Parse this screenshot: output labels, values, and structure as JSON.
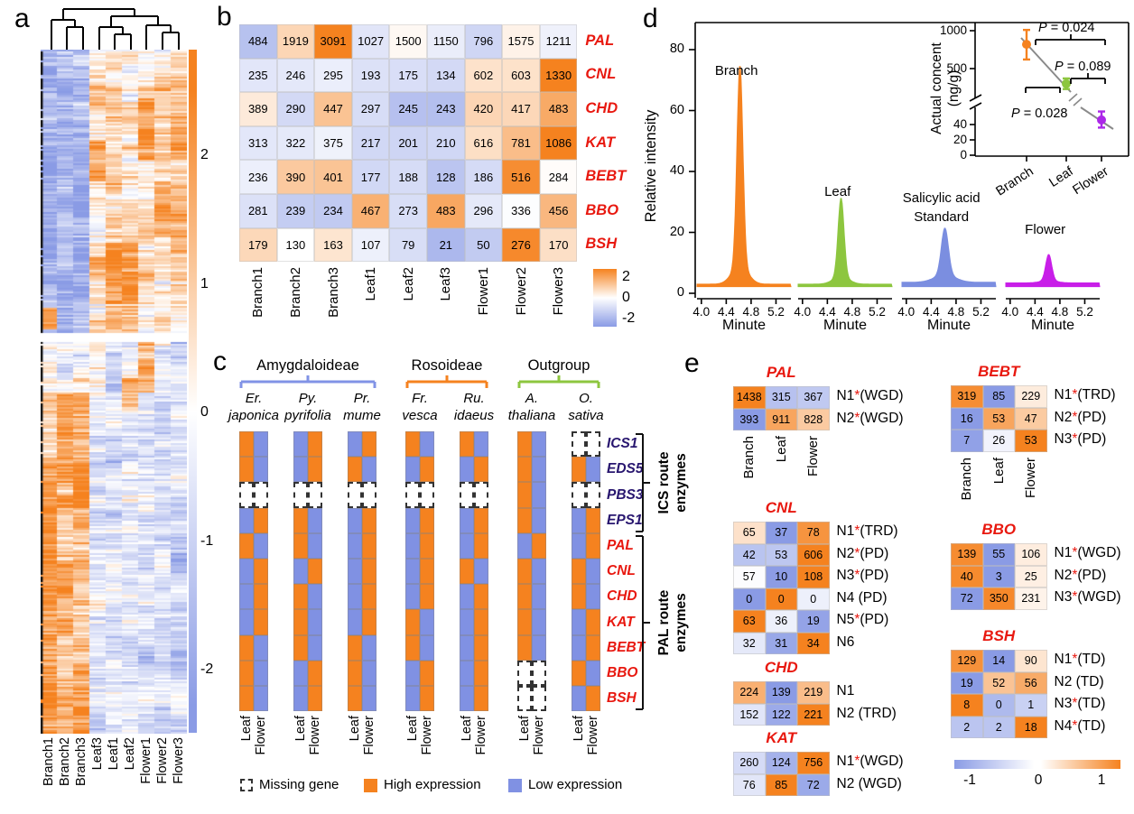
{
  "palette": {
    "orange": "#F5821F",
    "blue": "#8A9BE5",
    "c_blue": "#8091E3",
    "red_label": "#E8180F",
    "navy_label": "#28166F",
    "green": "#8DC63F",
    "std_blue": "#7B8EE0",
    "magenta": "#C81EE8",
    "inset_purple": "#AB27E8",
    "gray_line": "#8a8a8a",
    "black": "#000000"
  },
  "panels": {
    "a": {
      "label": "a"
    },
    "b": {
      "label": "b"
    },
    "c": {
      "label": "c"
    },
    "d": {
      "label": "d"
    },
    "e": {
      "label": "e"
    }
  },
  "chart_data": [
    {
      "id": "a",
      "type": "heatmap",
      "description": "Hierarchically clustered gene expression z-score heatmap (rows = genes)",
      "columns": [
        "Branch1",
        "Branch2",
        "Branch3",
        "Leaf3",
        "Leaf1",
        "Leaf2",
        "Flower1",
        "Flower2",
        "Flower3"
      ],
      "colorbar_ticks": [
        "2",
        "1",
        "0",
        "-1",
        "-2"
      ],
      "zlim": [
        -2,
        2
      ],
      "dendrogram_structure": "((Branch1,(Branch2,Branch3)),((Leaf3,(Leaf1,Leaf2)),(Flower1,(Flower2,Flower3))))",
      "row_blocks": [
        {
          "y0": 0.0,
          "y1": 0.412,
          "base": [
            -1.2,
            -1.15,
            -1.1,
            0.45,
            0.5,
            0.45,
            0.4,
            0.5,
            0.55
          ]
        },
        {
          "y0": 0.412,
          "y1": 0.425,
          "gap": true
        },
        {
          "y0": 0.425,
          "y1": 1.0,
          "base": [
            0.85,
            0.8,
            0.75,
            -0.5,
            -0.5,
            -0.55,
            -0.45,
            -0.5,
            -0.55
          ]
        }
      ],
      "row_bands": [
        {
          "y0": 0.0,
          "y1": 0.05,
          "add": {
            "3": -0.3,
            "4": -0.3,
            "5": -0.3,
            "6": -0.5,
            "7": -0.4,
            "8": -0.3
          }
        },
        {
          "y0": 0.07,
          "y1": 0.16,
          "add": {
            "6": 1.1
          }
        },
        {
          "y0": 0.09,
          "y1": 0.16,
          "add": {
            "8": 0.7
          }
        },
        {
          "y0": 0.13,
          "y1": 0.19,
          "add": {
            "3": 0.9
          }
        },
        {
          "y0": 0.19,
          "y1": 0.27,
          "add": {
            "7": 0.6,
            "8": 0.5
          }
        },
        {
          "y0": 0.28,
          "y1": 0.37,
          "add": {
            "4": 0.7,
            "5": 0.8
          }
        },
        {
          "y0": 0.3,
          "y1": 0.37,
          "add": {
            "3": 0.5
          }
        },
        {
          "y0": 0.375,
          "y1": 0.408,
          "add": {
            "0": 2.6
          }
        },
        {
          "y0": 0.425,
          "y1": 0.5,
          "add": {
            "0": -1.0,
            "1": -0.9,
            "2": -0.7,
            "6": 1.7,
            "7": 0.4
          }
        },
        {
          "y0": 0.48,
          "y1": 0.53,
          "add": {
            "5": 1.2
          }
        },
        {
          "y0": 0.5,
          "y1": 0.56,
          "add": {
            "2": 0.6
          }
        },
        {
          "y0": 0.55,
          "y1": 0.67,
          "add": {
            "1": 0.55,
            "2": 0.35
          }
        },
        {
          "y0": 0.67,
          "y1": 1.0,
          "add": {
            "0": 0.55
          }
        },
        {
          "y0": 0.75,
          "y1": 0.85,
          "add": {
            "1": 0.4
          }
        },
        {
          "y0": 0.96,
          "y1": 1.0,
          "add": {
            "2": 0.9
          }
        }
      ]
    },
    {
      "id": "b",
      "type": "heatmap",
      "rows": [
        "PAL",
        "CNL",
        "CHD",
        "KAT",
        "BEBT",
        "BBO",
        "BSH"
      ],
      "columns": [
        "Branch1",
        "Branch2",
        "Branch3",
        "Leaf1",
        "Leaf2",
        "Leaf3",
        "Flower1",
        "Flower2",
        "Flower3"
      ],
      "values": [
        [
          484,
          1919,
          3091,
          1027,
          1500,
          1150,
          796,
          1575,
          1211
        ],
        [
          235,
          246,
          295,
          193,
          175,
          134,
          602,
          603,
          1330
        ],
        [
          389,
          290,
          447,
          297,
          245,
          243,
          420,
          417,
          483
        ],
        [
          313,
          322,
          375,
          217,
          201,
          210,
          616,
          781,
          1086
        ],
        [
          236,
          390,
          401,
          177,
          188,
          128,
          186,
          516,
          284
        ],
        [
          281,
          239,
          234,
          467,
          273,
          483,
          296,
          336,
          456
        ],
        [
          179,
          130,
          163,
          107,
          79,
          21,
          50,
          276,
          170
        ]
      ],
      "normalize": "row-zscore",
      "zlim": [
        -2,
        2
      ],
      "scale_ticks": [
        "2",
        "0",
        "-2"
      ]
    },
    {
      "id": "c",
      "type": "categorical-heatmap",
      "groups": [
        {
          "name": "Amygdaloideae",
          "color": "#8193E6",
          "pairs": [
            0,
            1,
            2
          ]
        },
        {
          "name": "Rosoideae",
          "color": "#F5821F",
          "pairs": [
            3,
            4
          ]
        },
        {
          "name": "Outgroup",
          "color": "#8DC63F",
          "pairs": [
            5,
            6
          ]
        }
      ],
      "species": [
        {
          "abbr": "Er.",
          "epithet": "japonica"
        },
        {
          "abbr": "Py.",
          "epithet": "pyrifolia"
        },
        {
          "abbr": "Pr.",
          "epithet": "mume"
        },
        {
          "abbr": "Fr.",
          "epithet": "vesca"
        },
        {
          "abbr": "Ru.",
          "epithet": "idaeus"
        },
        {
          "abbr": "A.",
          "epithet": "thaliana"
        },
        {
          "abbr": "O.",
          "epithet": "sativa"
        }
      ],
      "conditions": [
        "Leaf",
        "Flower"
      ],
      "row_groups": [
        {
          "name": "ICS route\nenzymes",
          "genes": [
            "ICS1",
            "EDS5",
            "PBS3",
            "EPS1"
          ],
          "label_style": "navy"
        },
        {
          "name": "PAL route\nenzymes",
          "genes": [
            "PAL",
            "CNL",
            "CHD",
            "KAT",
            "BEBT",
            "BBO",
            "BSH"
          ],
          "label_style": "red"
        }
      ],
      "matrix": [
        {
          "gene": "ICS1",
          "cells": [
            "H",
            "L",
            "L",
            "H",
            "L",
            "H",
            "H",
            "L",
            "H",
            "L",
            "H",
            "L",
            "M",
            "M"
          ]
        },
        {
          "gene": "EDS5",
          "cells": [
            "H",
            "L",
            "L",
            "H",
            "H",
            "L",
            "L",
            "H",
            "L",
            "H",
            "H",
            "L",
            "H",
            "L"
          ]
        },
        {
          "gene": "PBS3",
          "cells": [
            "M",
            "M",
            "M",
            "M",
            "M",
            "M",
            "M",
            "M",
            "M",
            "M",
            "H",
            "L",
            "M",
            "M"
          ]
        },
        {
          "gene": "EPS1",
          "cells": [
            "L",
            "H",
            "H",
            "L",
            "L",
            "H",
            "L",
            "H",
            "L",
            "H",
            "H",
            "L",
            "L",
            "H"
          ]
        },
        {
          "gene": "PAL",
          "cells": [
            "H",
            "L",
            "H",
            "L",
            "L",
            "H",
            "L",
            "H",
            "L",
            "H",
            "L",
            "H",
            "L",
            "H"
          ]
        },
        {
          "gene": "CNL",
          "cells": [
            "L",
            "H",
            "L",
            "H",
            "L",
            "H",
            "L",
            "H",
            "H",
            "L",
            "H",
            "L",
            "H",
            "L"
          ]
        },
        {
          "gene": "CHD",
          "cells": [
            "L",
            "H",
            "H",
            "L",
            "L",
            "H",
            "L",
            "H",
            "L",
            "H",
            "H",
            "L",
            "H",
            "L"
          ]
        },
        {
          "gene": "KAT",
          "cells": [
            "L",
            "H",
            "H",
            "L",
            "L",
            "H",
            "H",
            "L",
            "L",
            "H",
            "H",
            "L",
            "L",
            "H"
          ]
        },
        {
          "gene": "BEBT",
          "cells": [
            "H",
            "L",
            "H",
            "L",
            "H",
            "L",
            "H",
            "L",
            "L",
            "H",
            "H",
            "L",
            "L",
            "H"
          ]
        },
        {
          "gene": "BBO",
          "cells": [
            "H",
            "L",
            "L",
            "H",
            "H",
            "L",
            "L",
            "H",
            "L",
            "H",
            "M",
            "M",
            "H",
            "L"
          ]
        },
        {
          "gene": "BSH",
          "cells": [
            "H",
            "L",
            "L",
            "H",
            "H",
            "L",
            "L",
            "H",
            "L",
            "H",
            "M",
            "M",
            "L",
            "H"
          ]
        }
      ],
      "legend": [
        {
          "key": "M",
          "label": "Missing gene"
        },
        {
          "key": "H",
          "label": "High expression"
        },
        {
          "key": "L",
          "label": "Low expression"
        }
      ]
    },
    {
      "id": "d",
      "type": "chromatogram",
      "y_label": "Relative intensity",
      "y_ticks": [
        0,
        20,
        40,
        60,
        80
      ],
      "x_label": "Minute",
      "x_ticks": [
        4.0,
        4.4,
        4.8,
        5.2
      ],
      "series": [
        {
          "name": "Branch",
          "label_lines": [
            "Branch"
          ],
          "color": "#F5821F",
          "peak_total": 69,
          "peak_minute": 4.62,
          "baseline": 3
        },
        {
          "name": "Leaf",
          "label_lines": [
            "Leaf"
          ],
          "color": "#8DC63F",
          "peak_total": 29,
          "peak_minute": 4.62,
          "baseline": 3
        },
        {
          "name": "Salicylic acid Standard",
          "label_lines": [
            "Salicylic acid",
            "Standard"
          ],
          "color": "#7B8EE0",
          "peak_total": 19,
          "peak_minute": 4.62,
          "baseline": 3.6
        },
        {
          "name": "Flower",
          "label_lines": [
            "Flower"
          ],
          "color": "#C81EE8",
          "peak_total": 12,
          "peak_minute": 4.62,
          "baseline": 3.4
        }
      ],
      "inset": {
        "type": "scatter",
        "y_label_lines": [
          "Actual concent",
          "(ng/g)"
        ],
        "upper_ticks": [
          1000,
          500
        ],
        "lower_ticks": [
          40,
          20,
          0
        ],
        "axis_break": true,
        "points": [
          {
            "name": "Branch",
            "color": "#F5821F",
            "value": 820,
            "err_low": 620,
            "err_high": 1010
          },
          {
            "name": "Leaf",
            "color": "#8DC63F",
            "value": 300,
            "err_low": 230,
            "err_high": 370
          },
          {
            "name": "Flower",
            "color": "#AB27E8",
            "value": 46,
            "err_low": 36,
            "err_high": 57
          }
        ],
        "comparisons": [
          {
            "label": "P = 0.024"
          },
          {
            "label": "P = 0.089"
          },
          {
            "label": "P = 0.028"
          }
        ]
      }
    },
    {
      "id": "e",
      "type": "heatmap-group",
      "columns": [
        "Branch",
        "Leaf",
        "Flower"
      ],
      "normalize": "row-zscore",
      "zlim": [
        -1,
        1
      ],
      "scale_ticks": [
        "-1",
        "0",
        "1"
      ],
      "families": [
        {
          "gene": "PAL",
          "rows": [
            {
              "name": "N1",
              "star": true,
              "mode": "WGD",
              "values": [
                1438,
                315,
                367
              ]
            },
            {
              "name": "N2",
              "star": true,
              "mode": "WGD",
              "values": [
                393,
                911,
                828
              ]
            }
          ]
        },
        {
          "gene": "CNL",
          "rows": [
            {
              "name": "N1",
              "star": true,
              "mode": "TRD",
              "values": [
                65,
                37,
                78
              ]
            },
            {
              "name": "N2",
              "star": true,
              "mode": "PD",
              "values": [
                42,
                53,
                606
              ]
            },
            {
              "name": "N3",
              "star": true,
              "mode": "PD",
              "values": [
                57,
                10,
                108
              ]
            },
            {
              "name": "N4",
              "star": false,
              "mode": "PD",
              "values": [
                0,
                0,
                0
              ],
              "z_override": [
                -1.0,
                1.1,
                -0.15
              ]
            },
            {
              "name": "N5",
              "star": true,
              "mode": "PD",
              "values": [
                63,
                36,
                19
              ]
            },
            {
              "name": "N6",
              "star": false,
              "mode": "",
              "values": [
                32,
                31,
                34
              ]
            }
          ]
        },
        {
          "gene": "CHD",
          "rows": [
            {
              "name": "N1",
              "star": false,
              "mode": "",
              "values": [
                224,
                139,
                219
              ]
            },
            {
              "name": "N2",
              "star": false,
              "mode": "TRD",
              "values": [
                152,
                122,
                221
              ]
            }
          ]
        },
        {
          "gene": "KAT",
          "rows": [
            {
              "name": "N1",
              "star": true,
              "mode": "WGD",
              "values": [
                260,
                124,
                756
              ]
            },
            {
              "name": "N2",
              "star": false,
              "mode": "WGD",
              "values": [
                76,
                85,
                72
              ]
            }
          ]
        },
        {
          "gene": "BEBT",
          "rows": [
            {
              "name": "N1",
              "star": true,
              "mode": "TRD",
              "values": [
                319,
                85,
                229
              ]
            },
            {
              "name": "N2",
              "star": true,
              "mode": "PD",
              "values": [
                16,
                53,
                47
              ]
            },
            {
              "name": "N3",
              "star": true,
              "mode": "PD",
              "values": [
                7,
                26,
                53
              ]
            }
          ]
        },
        {
          "gene": "BBO",
          "rows": [
            {
              "name": "N1",
              "star": true,
              "mode": "WGD",
              "values": [
                139,
                55,
                106
              ]
            },
            {
              "name": "N2",
              "star": true,
              "mode": "PD",
              "values": [
                40,
                3,
                25
              ]
            },
            {
              "name": "N3",
              "star": true,
              "mode": "WGD",
              "values": [
                72,
                350,
                231
              ]
            }
          ]
        },
        {
          "gene": "BSH",
          "rows": [
            {
              "name": "N1",
              "star": true,
              "mode": "TD",
              "values": [
                129,
                14,
                90
              ]
            },
            {
              "name": "N2",
              "star": false,
              "mode": "TD",
              "values": [
                19,
                52,
                56
              ]
            },
            {
              "name": "N3",
              "star": true,
              "mode": "TD",
              "values": [
                8,
                0,
                1
              ]
            },
            {
              "name": "N4",
              "star": true,
              "mode": "TD",
              "values": [
                2,
                2,
                18
              ]
            }
          ]
        }
      ]
    }
  ]
}
